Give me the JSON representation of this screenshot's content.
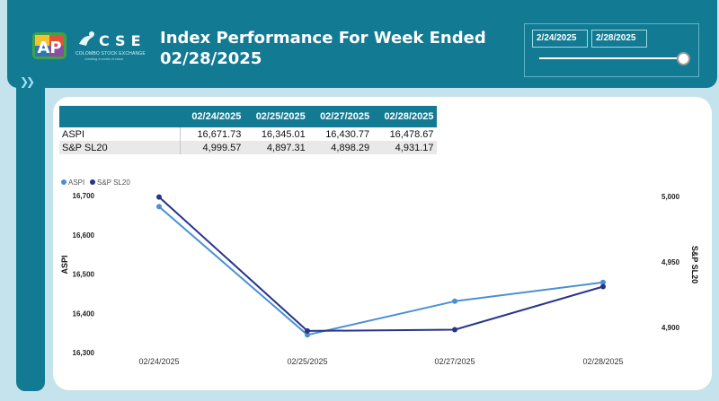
{
  "header": {
    "title_line1": "Index Performance For Week Ended",
    "title_line2": "02/28/2025",
    "logo_text": "CSE",
    "logo_subtitle": "COLOMBO STOCK EXCHANGE",
    "logo_tagline": "creating a world of value",
    "colors": {
      "header_bg": "#127a93",
      "page_bg": "#c5e3ec"
    }
  },
  "slicer": {
    "from": "2/24/2025",
    "to": "2/28/2025",
    "range_fraction": [
      0,
      1
    ]
  },
  "table": {
    "columns": [
      "",
      "02/24/2025",
      "02/25/2025",
      "02/27/2025",
      "02/28/2025"
    ],
    "rows": [
      {
        "name": "ASPI",
        "values": [
          "16,671.73",
          "16,345.01",
          "16,430.77",
          "16,478.67"
        ]
      },
      {
        "name": "S&P SL20",
        "values": [
          "4,999.57",
          "4,897.31",
          "4,898.29",
          "4,931.17"
        ]
      }
    ]
  },
  "chart_data": {
    "type": "line",
    "categories": [
      "02/24/2025",
      "02/25/2025",
      "02/27/2025",
      "02/28/2025"
    ],
    "series": [
      {
        "name": "ASPI",
        "axis": "left",
        "color": "#4a90d0",
        "values": [
          16671.73,
          16345.01,
          16430.77,
          16478.67
        ]
      },
      {
        "name": "S&P SL20",
        "axis": "right",
        "color": "#27348b",
        "values": [
          4999.57,
          4897.31,
          4898.29,
          4931.17
        ]
      }
    ],
    "ylabel": "ASPI",
    "y2label": "S&P SL20",
    "ylim": [
      16300,
      16700
    ],
    "yticks": [
      16300,
      16400,
      16500,
      16600,
      16700
    ],
    "y2lim": [
      4900,
      5000
    ],
    "y2ticks": [
      4900,
      4950,
      5000
    ],
    "legend": "top-left",
    "grid": false
  }
}
